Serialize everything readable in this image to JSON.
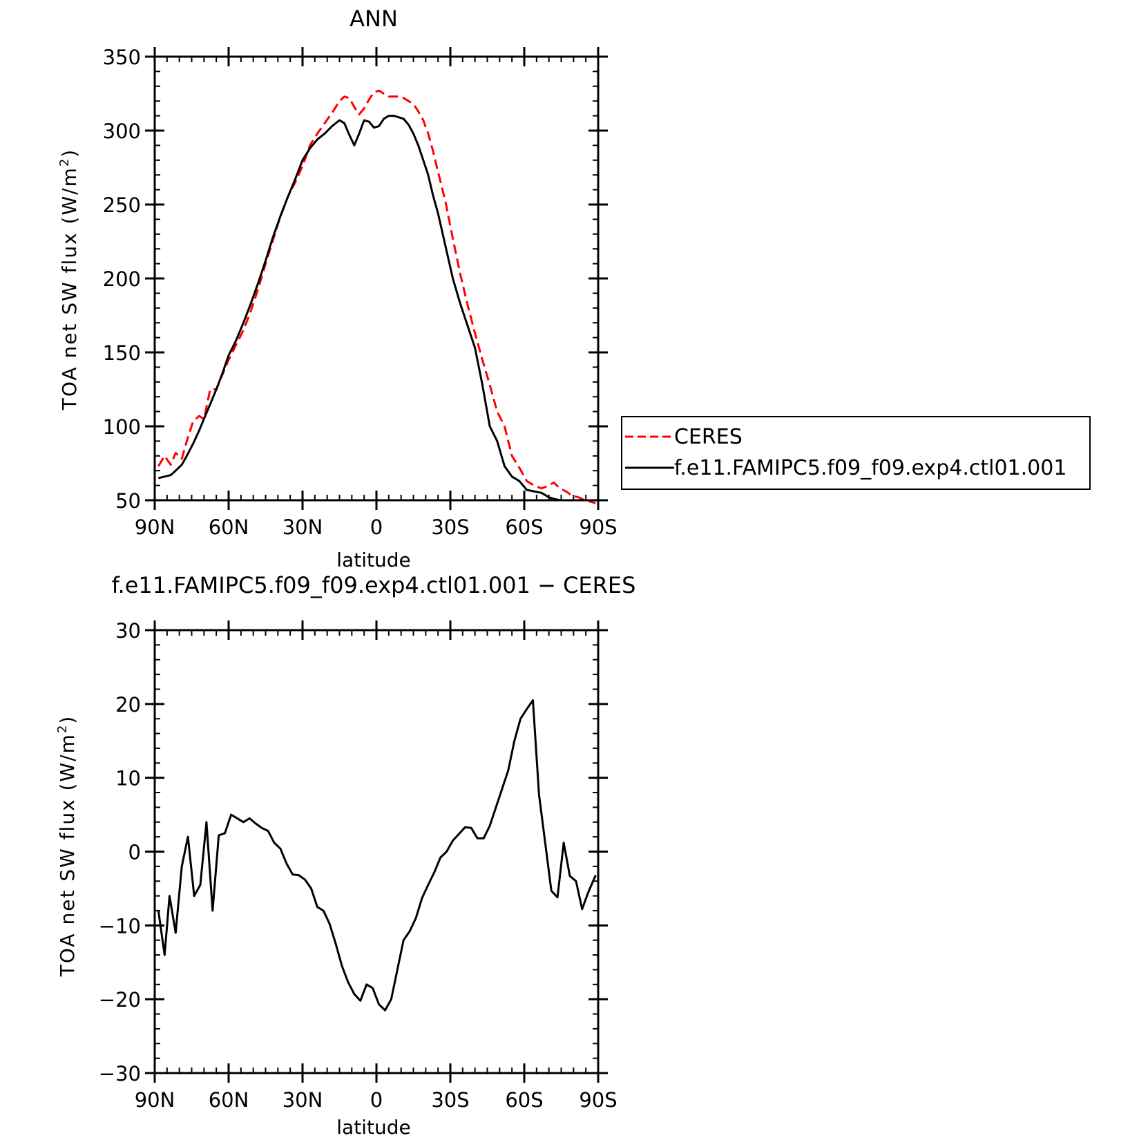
{
  "chart_data": [
    {
      "type": "line",
      "title": "ANN",
      "xlabel": "latitude",
      "ylabel": "TOA net SW flux (W/m",
      "ylabel_sup": "2",
      "ylabel_close": ")",
      "xlim": [
        90,
        -90
      ],
      "ylim": [
        50,
        350
      ],
      "xticks": [
        90,
        60,
        30,
        0,
        -30,
        -60,
        -90
      ],
      "xtick_labels": [
        "90N",
        "60N",
        "30N",
        "0",
        "30S",
        "60S",
        "90S"
      ],
      "yticks": [
        50,
        100,
        150,
        200,
        250,
        300,
        350
      ],
      "ytick_labels": [
        "50",
        "100",
        "150",
        "200",
        "250",
        "300",
        "350"
      ],
      "legend_position": "right",
      "series": [
        {
          "name": "CERES",
          "color": "#ff0000",
          "style": "dashed",
          "x": [
            88.5,
            86,
            83.5,
            81.5,
            79,
            77,
            74.5,
            72,
            70,
            67.5,
            65,
            62.5,
            60,
            57,
            54,
            51,
            48,
            45,
            42,
            39,
            36,
            33,
            30,
            27,
            24,
            21,
            18,
            15,
            13,
            11,
            9,
            7,
            5,
            3,
            1,
            -1,
            -3,
            -5,
            -7,
            -9,
            -11,
            -13,
            -15,
            -17,
            -19,
            -21,
            -23,
            -25,
            -28,
            -31,
            -34,
            -37,
            -40,
            -43,
            -46,
            -49,
            -52,
            -55,
            -58,
            -61,
            -64,
            -67,
            -70,
            -72,
            -74.5,
            -77,
            -79.5,
            -82,
            -84.5,
            -87,
            -89
          ],
          "y": [
            73,
            80,
            74,
            82,
            78,
            90,
            103,
            107,
            105,
            125,
            125,
            135,
            145,
            155,
            165,
            178,
            193,
            210,
            226,
            242,
            255,
            265,
            276,
            290,
            298,
            305,
            312,
            320,
            323,
            322,
            316,
            311,
            315,
            321,
            326,
            327,
            325,
            323,
            323,
            323,
            322,
            320,
            318,
            313,
            307,
            298,
            286,
            272,
            252,
            227,
            203,
            182,
            163,
            145,
            128,
            110,
            100,
            80,
            72,
            63,
            60,
            58,
            60,
            62,
            58,
            56,
            53,
            52,
            50,
            49,
            48
          ],
          "note_drop": true
        },
        {
          "name": "f.e11.FAMIPC5.f09_f09.exp4.ctl01.001",
          "color": "#000000",
          "style": "solid",
          "x": [
            88.5,
            86,
            83.5,
            81.5,
            79,
            77,
            74.5,
            72,
            70,
            67.5,
            65,
            62.5,
            60,
            57,
            54,
            51,
            48,
            45,
            42,
            39,
            36,
            33,
            30,
            27,
            24,
            21,
            18,
            15,
            13,
            11,
            9,
            7,
            5,
            3,
            1,
            -1,
            -3,
            -5,
            -7,
            -9,
            -11,
            -13,
            -15,
            -17,
            -19,
            -21,
            -23,
            -25,
            -28,
            -31,
            -34,
            -37,
            -40,
            -43,
            -46,
            -49,
            -52,
            -55,
            -58,
            -61,
            -64,
            -67,
            -70,
            -72,
            -74.5,
            -77,
            -79.5,
            -82,
            -84.5,
            -87,
            -89
          ],
          "y": [
            65,
            66,
            67,
            70,
            74,
            80,
            88,
            97,
            105,
            115,
            125,
            136,
            148,
            158,
            170,
            183,
            197,
            212,
            228,
            242,
            255,
            267,
            280,
            288,
            294,
            298,
            303,
            307,
            305,
            297,
            290,
            298,
            307,
            306,
            302,
            303,
            308,
            310,
            310,
            309,
            308,
            304,
            298,
            290,
            280,
            270,
            256,
            244,
            222,
            200,
            183,
            168,
            153,
            128,
            100,
            90,
            73,
            66,
            63,
            57,
            56,
            55,
            52,
            51,
            50,
            50,
            50,
            50,
            50,
            50,
            50
          ]
        }
      ]
    },
    {
      "type": "line",
      "title": "f.e11.FAMIPC5.f09_f09.exp4.ctl01.001  −  CERES",
      "xlabel": "latitude",
      "ylabel": "TOA net SW flux (W/m",
      "ylabel_sup": "2",
      "ylabel_close": ")",
      "xlim": [
        90,
        -90
      ],
      "ylim": [
        -30,
        30
      ],
      "xticks": [
        90,
        60,
        30,
        0,
        -30,
        -60,
        -90
      ],
      "xtick_labels": [
        "90N",
        "60N",
        "30N",
        "0",
        "30S",
        "60S",
        "90S"
      ],
      "yticks": [
        -30,
        -20,
        -10,
        0,
        10,
        20,
        30
      ],
      "ytick_labels": [
        "−30",
        "−20",
        "−10",
        "0",
        "10",
        "20",
        "30"
      ],
      "series": [
        {
          "color": "#000000",
          "style": "solid",
          "x": [
            88.5,
            86,
            84,
            81.5,
            79,
            76.5,
            74,
            71.5,
            69,
            66.5,
            64,
            61.5,
            59,
            56.5,
            54,
            51.5,
            49,
            46.5,
            44,
            41.5,
            39,
            36.5,
            34,
            31.5,
            29,
            26.5,
            24,
            21.5,
            19,
            16.5,
            14,
            11.5,
            9,
            6.5,
            4,
            1.5,
            -1,
            -3.5,
            -6,
            -8.5,
            -11,
            -13.5,
            -16,
            -18.5,
            -21,
            -23.5,
            -26,
            -28.5,
            -31,
            -33.5,
            -36,
            -38.5,
            -41,
            -43.5,
            -46,
            -48.5,
            -51,
            -53.5,
            -56,
            -58.5,
            -61,
            -63.5,
            -66,
            -68.5,
            -71,
            -73.5,
            -76,
            -78.5,
            -81,
            -83.5,
            -86,
            -89
          ],
          "y": [
            -8,
            -14,
            -6,
            -11,
            -2,
            2,
            -6,
            -4.5,
            4,
            -8,
            2.2,
            2.5,
            5,
            4.5,
            4,
            4.5,
            3.8,
            3.2,
            2.8,
            1.2,
            0.4,
            -1.6,
            -3.1,
            -3.2,
            -3.8,
            -5,
            -7.5,
            -8,
            -9.8,
            -12.5,
            -15.5,
            -17.7,
            -19.3,
            -20.2,
            -18,
            -18.5,
            -20.7,
            -21.5,
            -20,
            -16,
            -12,
            -10.8,
            -9,
            -6.3,
            -4.5,
            -2.8,
            -0.8,
            0,
            1.5,
            2.4,
            3.3,
            3.2,
            1.8,
            1.8,
            3.5,
            6,
            8.5,
            11,
            15,
            18,
            19.3,
            20.5,
            7.7,
            1.2,
            -5.3,
            -6.2,
            1.2,
            -3.3,
            -4,
            -7.8,
            -5.5,
            -3.2
          ]
        }
      ]
    }
  ]
}
